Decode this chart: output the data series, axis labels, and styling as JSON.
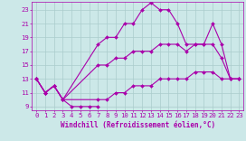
{
  "background_color": "#cce8e8",
  "grid_color": "#aacccc",
  "line_color": "#aa00aa",
  "marker_color": "#aa00aa",
  "xlabel": "Windchill (Refroidissement éolien,°C)",
  "xlim": [
    -0.5,
    23.5
  ],
  "ylim": [
    8.5,
    24.2
  ],
  "yticks": [
    9,
    11,
    13,
    15,
    17,
    19,
    21,
    23
  ],
  "xticks": [
    0,
    1,
    2,
    3,
    4,
    5,
    6,
    7,
    8,
    9,
    10,
    11,
    12,
    13,
    14,
    15,
    16,
    17,
    18,
    19,
    20,
    21,
    22,
    23
  ],
  "lines": [
    {
      "x": [
        0,
        1,
        2,
        3,
        4,
        5,
        6,
        7
      ],
      "y": [
        13,
        11,
        12,
        10,
        9,
        9,
        9,
        9
      ]
    },
    {
      "x": [
        0,
        1,
        2,
        3,
        7,
        8,
        9,
        10,
        11,
        12,
        13,
        14,
        15,
        16,
        17,
        18,
        19,
        20,
        21,
        22,
        23
      ],
      "y": [
        13,
        11,
        12,
        10,
        18,
        19,
        19,
        21,
        21,
        23,
        24,
        23,
        23,
        21,
        18,
        18,
        18,
        21,
        18,
        13,
        13
      ]
    },
    {
      "x": [
        0,
        1,
        2,
        3,
        7,
        8,
        9,
        10,
        11,
        12,
        13,
        14,
        15,
        16,
        17,
        18,
        19,
        20,
        21,
        22,
        23
      ],
      "y": [
        13,
        11,
        12,
        10,
        15,
        15,
        16,
        16,
        17,
        17,
        17,
        18,
        18,
        18,
        17,
        18,
        18,
        18,
        16,
        13,
        13
      ]
    },
    {
      "x": [
        0,
        1,
        2,
        3,
        7,
        8,
        9,
        10,
        11,
        12,
        13,
        14,
        15,
        16,
        17,
        18,
        19,
        20,
        21,
        22,
        23
      ],
      "y": [
        13,
        11,
        12,
        10,
        10,
        10,
        11,
        11,
        12,
        12,
        12,
        13,
        13,
        13,
        13,
        14,
        14,
        14,
        13,
        13,
        13
      ]
    }
  ],
  "xlabel_fontsize": 5.5,
  "tick_fontsize": 5.2,
  "linewidth": 0.8,
  "markersize": 2.0
}
